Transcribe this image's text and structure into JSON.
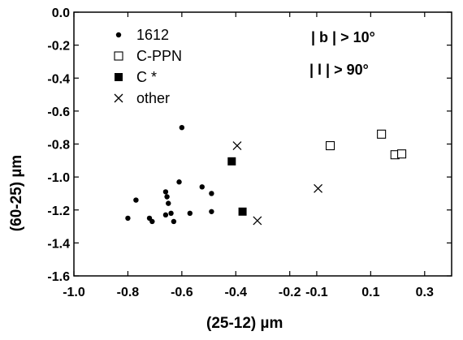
{
  "chart_data": {
    "type": "scatter",
    "xlabel": "(25-12)  µm",
    "ylabel": "(60-25)  µm",
    "xlim": [
      -1.0,
      0.4
    ],
    "ylim": [
      -1.6,
      0.0
    ],
    "x_ticks": [
      -1.0,
      -0.8,
      -0.6,
      -0.4,
      -0.2,
      -0.1,
      0.1,
      0.3
    ],
    "x_tick_labels": [
      "-1.0",
      "-0.8",
      "-0.6",
      "-0.4",
      "-0.2",
      "-0.1",
      "0.1",
      "0.3"
    ],
    "y_ticks": [
      0.0,
      -0.2,
      -0.4,
      -0.6,
      -0.8,
      -1.0,
      -1.2,
      -1.4,
      -1.6
    ],
    "y_tick_labels": [
      "0.0",
      "-0.2",
      "-0.4",
      "-0.6",
      "-0.8",
      "-1.0",
      "-1.2",
      "-1.4",
      "-1.6"
    ],
    "grid": false,
    "legend_position": "top-left",
    "series": [
      {
        "name": "1612",
        "marker": "filled-circle",
        "points": [
          {
            "x": -0.8,
            "y": -1.25
          },
          {
            "x": -0.77,
            "y": -1.14
          },
          {
            "x": -0.72,
            "y": -1.25
          },
          {
            "x": -0.71,
            "y": -1.27
          },
          {
            "x": -0.66,
            "y": -1.09
          },
          {
            "x": -0.655,
            "y": -1.12
          },
          {
            "x": -0.65,
            "y": -1.16
          },
          {
            "x": -0.66,
            "y": -1.23
          },
          {
            "x": -0.64,
            "y": -1.22
          },
          {
            "x": -0.63,
            "y": -1.27
          },
          {
            "x": -0.61,
            "y": -1.03
          },
          {
            "x": -0.6,
            "y": -0.7
          },
          {
            "x": -0.57,
            "y": -1.22
          },
          {
            "x": -0.525,
            "y": -1.06
          },
          {
            "x": -0.49,
            "y": -1.1
          },
          {
            "x": -0.49,
            "y": -1.21
          }
        ]
      },
      {
        "name": "C-PPN",
        "marker": "open-square",
        "points": [
          {
            "x": -0.05,
            "y": -0.81
          },
          {
            "x": 0.14,
            "y": -0.74
          },
          {
            "x": 0.19,
            "y": -0.865
          },
          {
            "x": 0.215,
            "y": -0.86
          }
        ]
      },
      {
        "name": "C *",
        "marker": "filled-square",
        "points": [
          {
            "x": -0.415,
            "y": -0.905
          },
          {
            "x": -0.375,
            "y": -1.21
          }
        ]
      },
      {
        "name": "other",
        "marker": "cross",
        "points": [
          {
            "x": -0.395,
            "y": -0.81
          },
          {
            "x": -0.32,
            "y": -1.265
          },
          {
            "x": -0.095,
            "y": -1.07
          }
        ]
      }
    ],
    "annotations": [
      "| b | > 10°",
      "| l | > 90°"
    ]
  }
}
